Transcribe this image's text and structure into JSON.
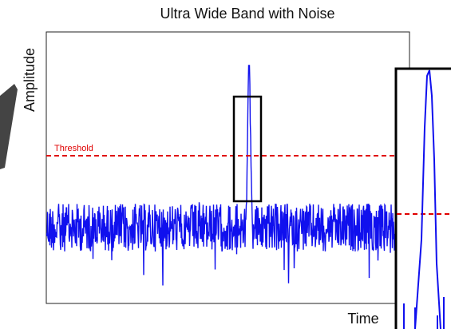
{
  "header": {
    "title": "Ultra Wide Band with Noise"
  },
  "axes": {
    "y_label": "Amplitude",
    "x_label": "Time"
  },
  "annotations": {
    "threshold": "Threshold"
  }
}
